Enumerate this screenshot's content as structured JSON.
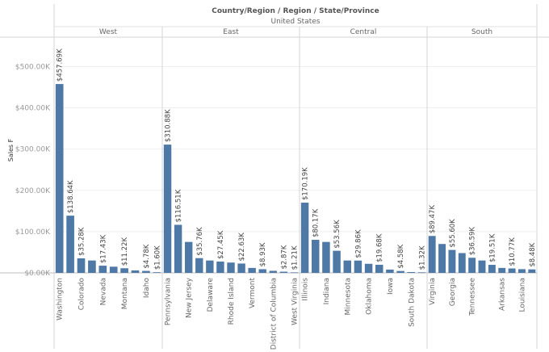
{
  "chart_data": {
    "type": "bar",
    "header": {
      "title": "Country/Region / Region / State/Province",
      "subtitle": "United States"
    },
    "ylabel": "Sales F",
    "ylim": [
      0,
      540000
    ],
    "yticks": [
      0,
      100000,
      200000,
      300000,
      400000,
      500000
    ],
    "ytick_labels": [
      "$0.00K",
      "$100.00K",
      "$200.00K",
      "$300.00K",
      "$400.00K",
      "$500.00K"
    ],
    "bar_color": "#4e79a7",
    "grid": true,
    "panels": [
      {
        "region": "West",
        "bars": [
          {
            "state": "Washington",
            "value": 457690,
            "label": "$457.69K"
          },
          {
            "state": "",
            "value": 138640,
            "label": "$138.64K"
          },
          {
            "state": "Colorado",
            "value": 35280,
            "label": "$35.28K"
          },
          {
            "state": "",
            "value": 30000,
            "label": ""
          },
          {
            "state": "Nevada",
            "value": 17430,
            "label": "$17.43K"
          },
          {
            "state": "",
            "value": 15000,
            "label": ""
          },
          {
            "state": "Montana",
            "value": 11220,
            "label": "$11.22K"
          },
          {
            "state": "",
            "value": 6000,
            "label": ""
          },
          {
            "state": "Idaho",
            "value": 4780,
            "label": "$4.78K"
          },
          {
            "state": "",
            "value": 1600,
            "label": "$1.60K"
          }
        ]
      },
      {
        "region": "East",
        "bars": [
          {
            "state": "Pennsylvania",
            "value": 310880,
            "label": "$310.88K"
          },
          {
            "state": "",
            "value": 116510,
            "label": "$116.51K"
          },
          {
            "state": "New Jersey",
            "value": 75000,
            "label": ""
          },
          {
            "state": "",
            "value": 35760,
            "label": "$35.76K"
          },
          {
            "state": "Delaware",
            "value": 30000,
            "label": ""
          },
          {
            "state": "",
            "value": 27450,
            "label": "$27.45K"
          },
          {
            "state": "Rhode Island",
            "value": 25000,
            "label": ""
          },
          {
            "state": "",
            "value": 22630,
            "label": "$22.63K"
          },
          {
            "state": "Vermont",
            "value": 12000,
            "label": ""
          },
          {
            "state": "",
            "value": 8930,
            "label": "$8.93K"
          },
          {
            "state": "District of Columbia",
            "value": 5000,
            "label": ""
          },
          {
            "state": "",
            "value": 2870,
            "label": "$2.87K"
          },
          {
            "state": "West Virginia",
            "value": 1210,
            "label": "$1.21K"
          }
        ]
      },
      {
        "region": "Central",
        "bars": [
          {
            "state": "Illinois",
            "value": 170190,
            "label": "$170.19K"
          },
          {
            "state": "",
            "value": 80170,
            "label": "$80.17K"
          },
          {
            "state": "Indiana",
            "value": 75000,
            "label": ""
          },
          {
            "state": "",
            "value": 53560,
            "label": "$53.56K"
          },
          {
            "state": "Minnesota",
            "value": 30000,
            "label": ""
          },
          {
            "state": "",
            "value": 29860,
            "label": "$29.86K"
          },
          {
            "state": "Oklahoma",
            "value": 22000,
            "label": ""
          },
          {
            "state": "",
            "value": 19680,
            "label": "$19.68K"
          },
          {
            "state": "Iowa",
            "value": 8000,
            "label": ""
          },
          {
            "state": "",
            "value": 4580,
            "label": "$4.58K"
          },
          {
            "state": "South Dakota",
            "value": 2000,
            "label": ""
          },
          {
            "state": "",
            "value": 1320,
            "label": "$1.32K"
          }
        ]
      },
      {
        "region": "South",
        "bars": [
          {
            "state": "Virginia",
            "value": 89470,
            "label": "$89.47K"
          },
          {
            "state": "",
            "value": 70000,
            "label": ""
          },
          {
            "state": "Georgia",
            "value": 55600,
            "label": "$55.60K"
          },
          {
            "state": "",
            "value": 48000,
            "label": ""
          },
          {
            "state": "Tennessee",
            "value": 36590,
            "label": "$36.59K"
          },
          {
            "state": "",
            "value": 30000,
            "label": ""
          },
          {
            "state": "",
            "value": 19510,
            "label": "$19.51K"
          },
          {
            "state": "Arkansas",
            "value": 12000,
            "label": ""
          },
          {
            "state": "",
            "value": 10770,
            "label": "$10.77K"
          },
          {
            "state": "Louisiana",
            "value": 9000,
            "label": ""
          },
          {
            "state": "",
            "value": 8480,
            "label": "$8.48K"
          }
        ]
      }
    ]
  }
}
